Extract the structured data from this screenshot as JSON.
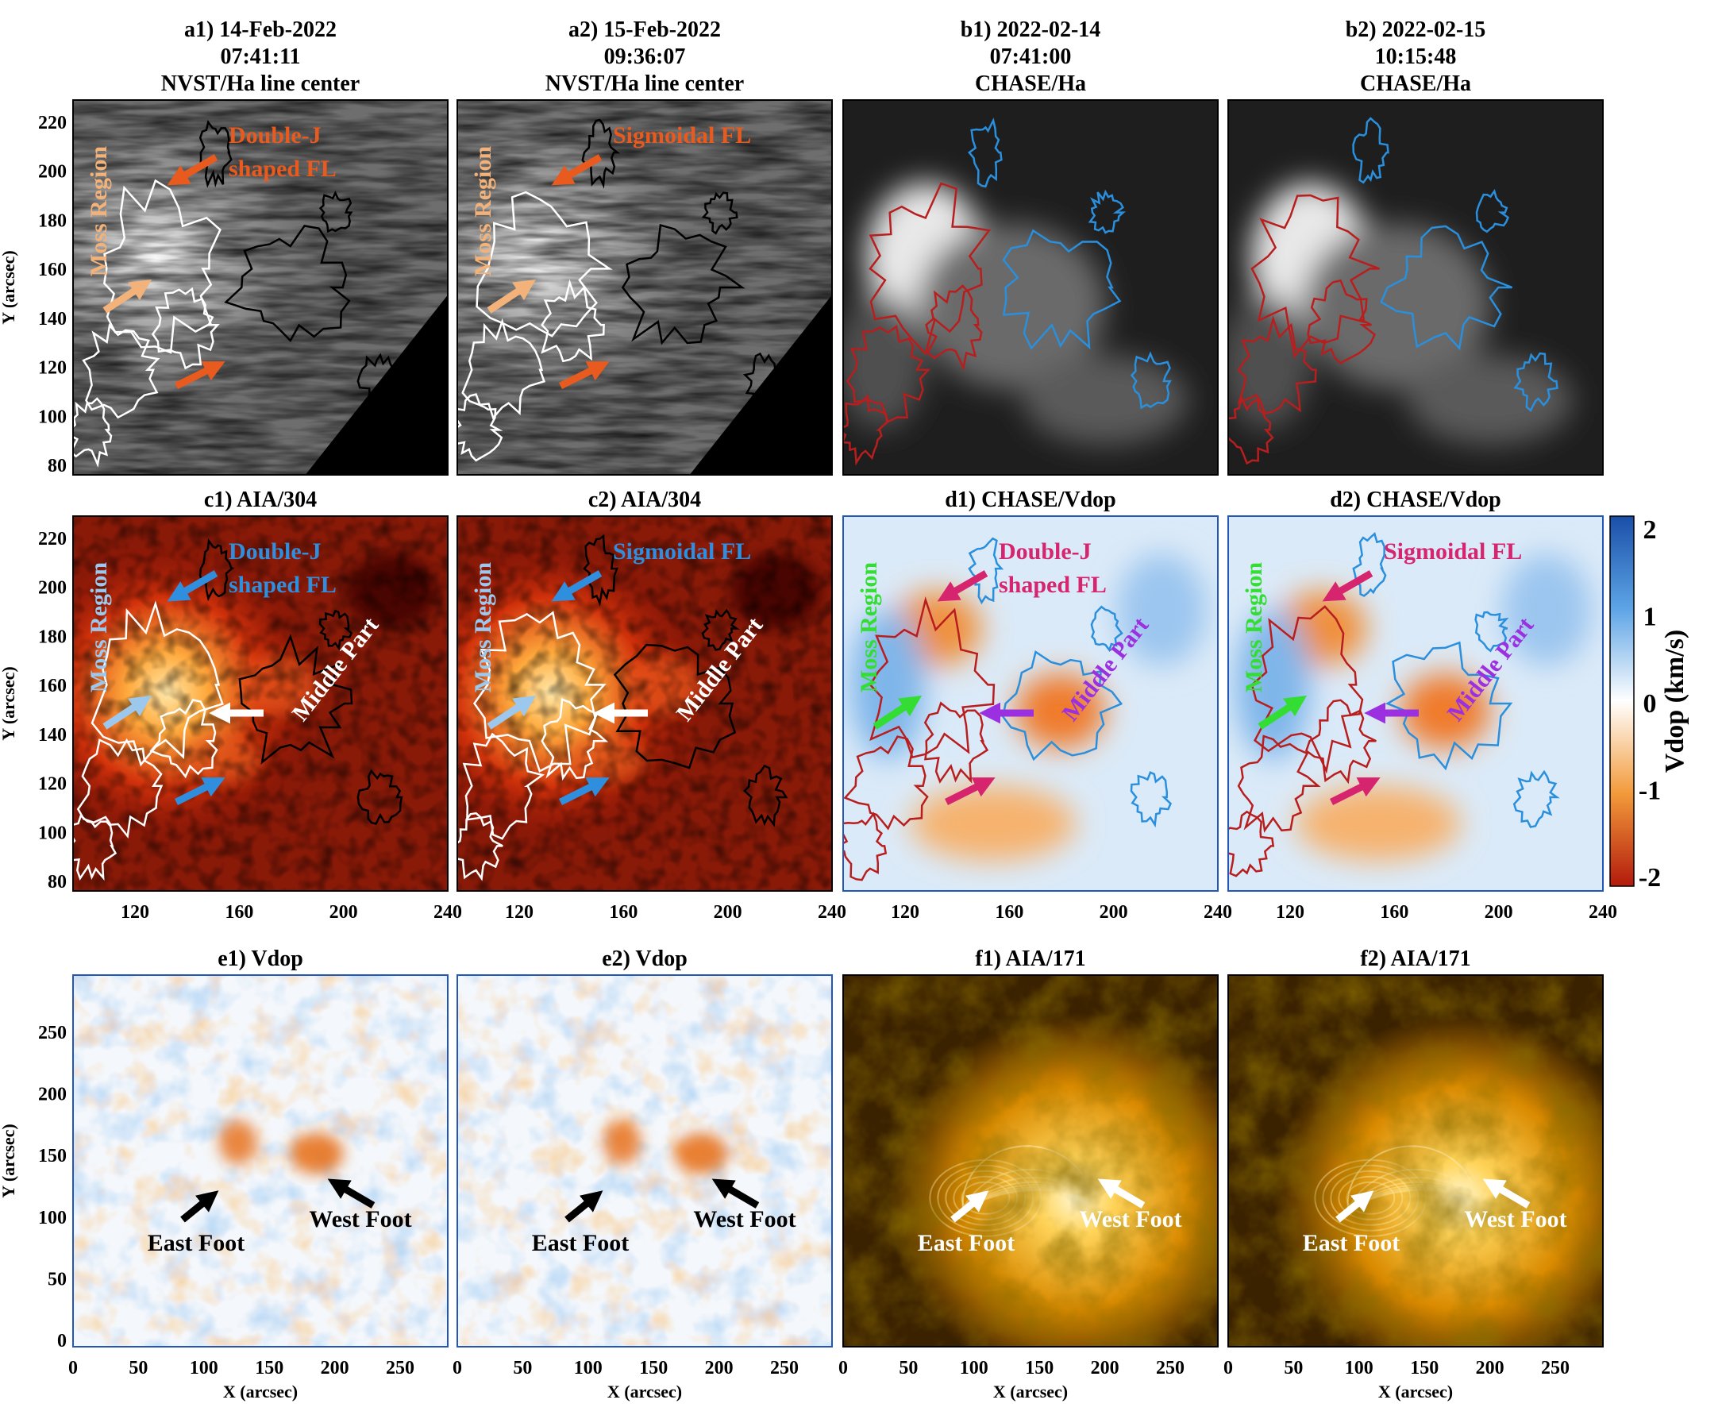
{
  "figure": {
    "rows": [
      {
        "id": "row1",
        "panels": [
          {
            "id": "a1",
            "title": [
              "a1) 14-Feb-2022",
              "07:41:11",
              "NVST/Ha line center"
            ],
            "style": "ha",
            "annColor": "#e85a1e",
            "mossColor": "#f2b27a",
            "labels": [
              {
                "k": "moss",
                "text": "Moss Region"
              },
              {
                "k": "fl",
                "text": "Double-J"
              },
              {
                "k": "fl2",
                "text": "shaped FL"
              }
            ]
          },
          {
            "id": "a2",
            "title": [
              "a2) 15-Feb-2022",
              "09:36:07",
              "NVST/Ha line center"
            ],
            "style": "ha",
            "annColor": "#e85a1e",
            "mossColor": "#f2b27a",
            "labels": [
              {
                "k": "moss",
                "text": "Moss Region"
              },
              {
                "k": "fl",
                "text": "Sigmoidal FL"
              }
            ]
          },
          {
            "id": "b1",
            "title": [
              "b1) 2022-02-14",
              "07:41:00",
              "CHASE/Ha"
            ],
            "style": "chase",
            "labels": []
          },
          {
            "id": "b2",
            "title": [
              "b2) 2022-02-15",
              "10:15:48",
              "CHASE/Ha"
            ],
            "style": "chase",
            "labels": []
          }
        ],
        "yTicks": [
          "80",
          "100",
          "120",
          "140",
          "160",
          "180",
          "200",
          "220"
        ],
        "yLabel": "Y (arcsec)"
      },
      {
        "id": "row2",
        "panels": [
          {
            "id": "c1",
            "title": [
              "c1) AIA/304"
            ],
            "style": "aia304",
            "annColor": "#2f8fde",
            "mossColor": "#9cc8ee",
            "labels": [
              {
                "k": "moss",
                "text": "Moss Region"
              },
              {
                "k": "fl",
                "text": "Double-J"
              },
              {
                "k": "fl2",
                "text": "shaped FL"
              },
              {
                "k": "mid",
                "text": "Middle Part"
              }
            ]
          },
          {
            "id": "c2",
            "title": [
              "c2) AIA/304"
            ],
            "style": "aia304",
            "annColor": "#2f8fde",
            "mossColor": "#9cc8ee",
            "labels": [
              {
                "k": "moss",
                "text": "Moss Region"
              },
              {
                "k": "fl",
                "text": "Sigmoidal FL"
              },
              {
                "k": "mid",
                "text": "Middle Part"
              }
            ]
          },
          {
            "id": "d1",
            "title": [
              "d1) CHASE/Vdop"
            ],
            "style": "vdop",
            "annColor": "#d6246e",
            "mossColor": "#33dd33",
            "midColor": "#9b30e0",
            "labels": [
              {
                "k": "moss",
                "text": "Moss Region"
              },
              {
                "k": "fl",
                "text": "Double-J"
              },
              {
                "k": "fl2",
                "text": "shaped FL"
              },
              {
                "k": "mid",
                "text": "Middle Part"
              }
            ]
          },
          {
            "id": "d2",
            "title": [
              "d2) CHASE/Vdop"
            ],
            "style": "vdop",
            "annColor": "#d6246e",
            "mossColor": "#33dd33",
            "midColor": "#9b30e0",
            "labels": [
              {
                "k": "moss",
                "text": "Moss Region"
              },
              {
                "k": "fl",
                "text": "Sigmoidal FL"
              },
              {
                "k": "mid",
                "text": "Middle Part"
              }
            ]
          }
        ],
        "xTicks": [
          "120",
          "160",
          "200",
          "240"
        ],
        "yTicks": [
          "80",
          "100",
          "120",
          "140",
          "160",
          "180",
          "200",
          "220"
        ],
        "yLabel": "Y (arcsec)"
      },
      {
        "id": "row3",
        "panels": [
          {
            "id": "e1",
            "title": [
              "e1) Vdop"
            ],
            "style": "vdopwide",
            "labels": [
              {
                "k": "east",
                "text": "East Foot"
              },
              {
                "k": "west",
                "text": "West Foot"
              }
            ]
          },
          {
            "id": "e2",
            "title": [
              "e2) Vdop"
            ],
            "style": "vdopwide",
            "labels": [
              {
                "k": "east",
                "text": "East Foot"
              },
              {
                "k": "west",
                "text": "West Foot"
              }
            ]
          },
          {
            "id": "f1",
            "title": [
              "f1) AIA/171"
            ],
            "style": "aia171",
            "labels": [
              {
                "k": "east",
                "text": "East Foot"
              },
              {
                "k": "west",
                "text": "West Foot"
              }
            ]
          },
          {
            "id": "f2",
            "title": [
              "f2) AIA/171"
            ],
            "style": "aia171",
            "labels": [
              {
                "k": "east",
                "text": "East Foot"
              },
              {
                "k": "west",
                "text": "West Foot"
              }
            ]
          }
        ],
        "xTicks": [
          "0",
          "50",
          "100",
          "150",
          "200",
          "250"
        ],
        "yTicks": [
          "0",
          "50",
          "100",
          "150",
          "200",
          "250"
        ],
        "xLabel": "X (arcsec)",
        "yLabel": "Y (arcsec)"
      }
    ],
    "colorbar": {
      "label": "Vdop (km/s)",
      "ticks": [
        "2",
        "1",
        "0",
        "-1",
        "-2"
      ],
      "range": [
        -2,
        2
      ]
    }
  }
}
